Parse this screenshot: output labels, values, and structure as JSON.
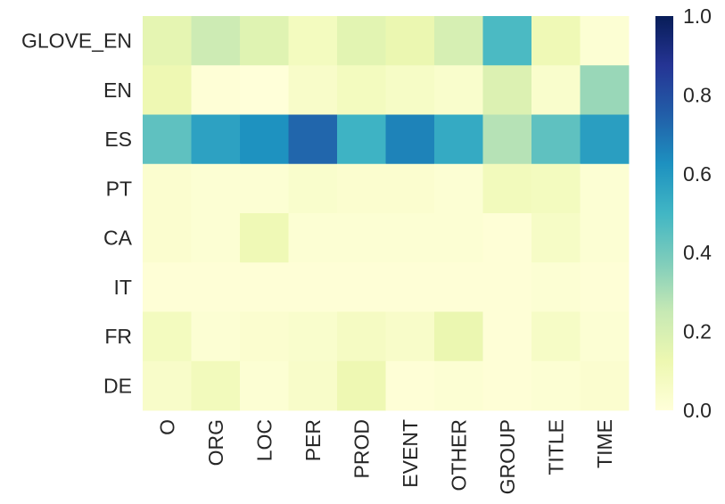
{
  "chart_data": {
    "type": "heatmap",
    "title": "",
    "xlabel": "",
    "ylabel": "",
    "x_categories": [
      "O",
      "ORG",
      "LOC",
      "PER",
      "PROD",
      "EVENT",
      "OTHER",
      "GROUP",
      "TITLE",
      "TIME"
    ],
    "y_categories": [
      "GLOVE_EN",
      "EN",
      "ES",
      "PT",
      "CA",
      "IT",
      "FR",
      "DE"
    ],
    "values": [
      [
        0.15,
        0.23,
        0.17,
        0.08,
        0.16,
        0.13,
        0.2,
        0.48,
        0.11,
        0.02
      ],
      [
        0.12,
        0.01,
        0.0,
        0.05,
        0.08,
        0.06,
        0.04,
        0.18,
        0.04,
        0.33
      ],
      [
        0.44,
        0.57,
        0.62,
        0.73,
        0.51,
        0.66,
        0.54,
        0.28,
        0.44,
        0.58
      ],
      [
        0.03,
        0.02,
        0.02,
        0.04,
        0.03,
        0.03,
        0.02,
        0.09,
        0.08,
        0.02
      ],
      [
        0.03,
        0.02,
        0.11,
        0.02,
        0.02,
        0.02,
        0.02,
        0.01,
        0.06,
        0.02
      ],
      [
        0.01,
        0.01,
        0.01,
        0.01,
        0.01,
        0.01,
        0.01,
        0.01,
        0.02,
        0.01
      ],
      [
        0.08,
        0.02,
        0.03,
        0.04,
        0.07,
        0.05,
        0.13,
        0.01,
        0.06,
        0.02
      ],
      [
        0.05,
        0.09,
        0.02,
        0.05,
        0.12,
        0.01,
        0.02,
        0.01,
        0.02,
        0.03
      ]
    ],
    "colorbar": {
      "min": 0.0,
      "max": 1.0,
      "ticks": [
        "0.0",
        "0.2",
        "0.4",
        "0.6",
        "0.8",
        "1.0"
      ],
      "colormap": "YlGnBu"
    },
    "grid": false,
    "legend": "colorbar-right"
  }
}
